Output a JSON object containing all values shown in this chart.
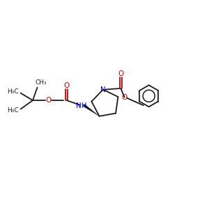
{
  "bg_color": "#ffffff",
  "bond_color": "#1a1a1a",
  "oxygen_color": "#cc0000",
  "nitrogen_color": "#0000cc",
  "lw": 1.3,
  "fig_width": 3.0,
  "fig_height": 3.0,
  "xlim": [
    0,
    10
  ],
  "ylim": [
    0,
    10
  ]
}
